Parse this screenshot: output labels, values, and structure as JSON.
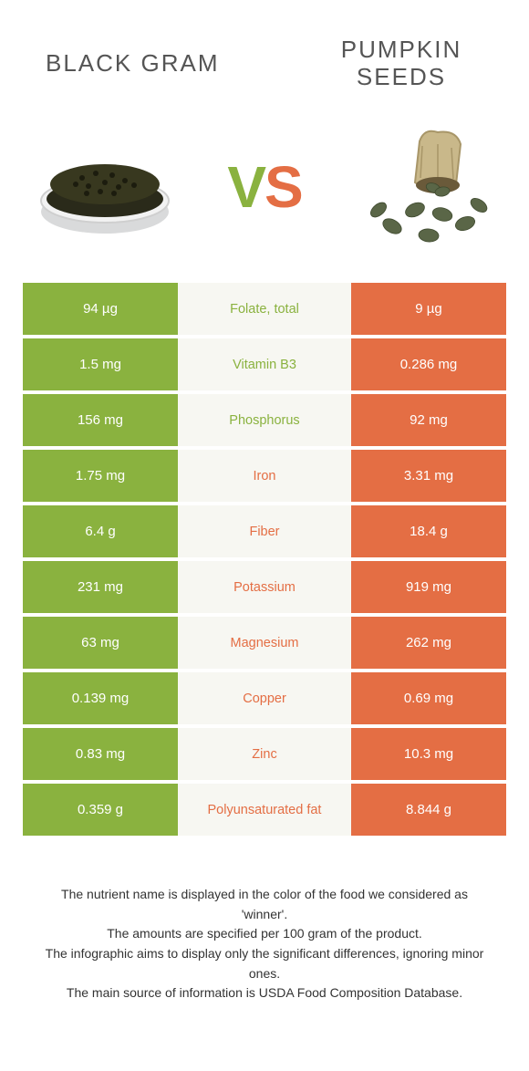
{
  "titles": {
    "left": "BLACK GRAM",
    "right_line1": "PUMPKIN",
    "right_line2": "SEEDS"
  },
  "vs": {
    "v": "V",
    "s": "S"
  },
  "colors": {
    "green": "#8ab23f",
    "orange": "#e46e44",
    "mid_bg": "#f7f7f2"
  },
  "rows": [
    {
      "left": "94 µg",
      "label": "Folate, total",
      "right": "9 µg",
      "winner": "green"
    },
    {
      "left": "1.5 mg",
      "label": "Vitamin B3",
      "right": "0.286 mg",
      "winner": "green"
    },
    {
      "left": "156 mg",
      "label": "Phosphorus",
      "right": "92 mg",
      "winner": "green"
    },
    {
      "left": "1.75 mg",
      "label": "Iron",
      "right": "3.31 mg",
      "winner": "orange"
    },
    {
      "left": "6.4 g",
      "label": "Fiber",
      "right": "18.4 g",
      "winner": "orange"
    },
    {
      "left": "231 mg",
      "label": "Potassium",
      "right": "919 mg",
      "winner": "orange"
    },
    {
      "left": "63 mg",
      "label": "Magnesium",
      "right": "262 mg",
      "winner": "orange"
    },
    {
      "left": "0.139 mg",
      "label": "Copper",
      "right": "0.69 mg",
      "winner": "orange"
    },
    {
      "left": "0.83 mg",
      "label": "Zinc",
      "right": "10.3 mg",
      "winner": "orange"
    },
    {
      "left": "0.359 g",
      "label": "Polyunsaturated fat",
      "right": "8.844 g",
      "winner": "orange"
    }
  ],
  "footer": {
    "l1": "The nutrient name is displayed in the color of the food we considered as 'winner'.",
    "l2": "The amounts are specified per 100 gram of the product.",
    "l3": "The infographic aims to display only the significant differences, ignoring minor ones.",
    "l4": "The main source of information is USDA Food Composition Database."
  }
}
